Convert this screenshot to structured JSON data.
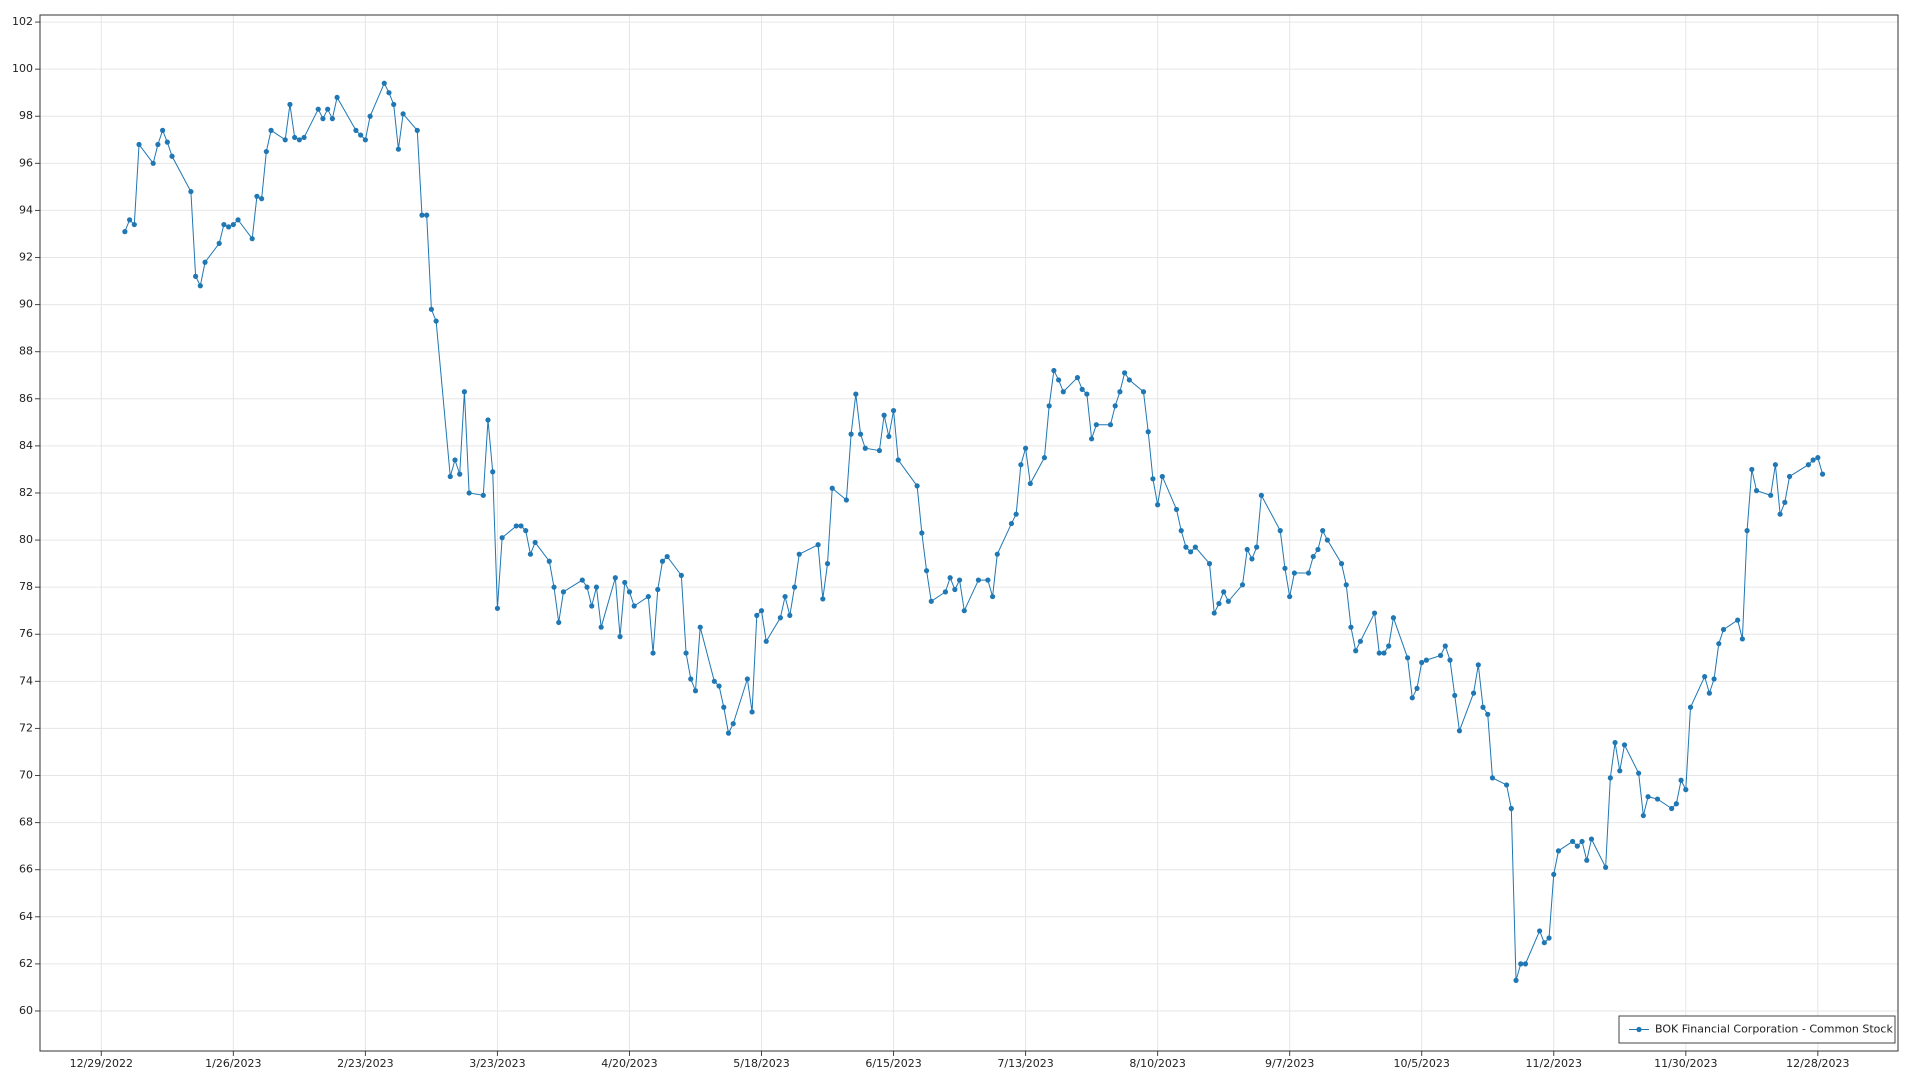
{
  "chart_data": {
    "type": "line",
    "x": [
      "2023-01-03",
      "2023-01-04",
      "2023-01-05",
      "2023-01-06",
      "2023-01-09",
      "2023-01-10",
      "2023-01-11",
      "2023-01-12",
      "2023-01-13",
      "2023-01-17",
      "2023-01-18",
      "2023-01-19",
      "2023-01-20",
      "2023-01-23",
      "2023-01-24",
      "2023-01-25",
      "2023-01-26",
      "2023-01-27",
      "2023-01-30",
      "2023-01-31",
      "2023-02-01",
      "2023-02-02",
      "2023-02-03",
      "2023-02-06",
      "2023-02-07",
      "2023-02-08",
      "2023-02-09",
      "2023-02-10",
      "2023-02-13",
      "2023-02-14",
      "2023-02-15",
      "2023-02-16",
      "2023-02-17",
      "2023-02-21",
      "2023-02-22",
      "2023-02-23",
      "2023-02-24",
      "2023-02-27",
      "2023-02-28",
      "2023-03-01",
      "2023-03-02",
      "2023-03-03",
      "2023-03-06",
      "2023-03-07",
      "2023-03-08",
      "2023-03-09",
      "2023-03-10",
      "2023-03-13",
      "2023-03-14",
      "2023-03-15",
      "2023-03-16",
      "2023-03-17",
      "2023-03-20",
      "2023-03-21",
      "2023-03-22",
      "2023-03-23",
      "2023-03-24",
      "2023-03-27",
      "2023-03-28",
      "2023-03-29",
      "2023-03-30",
      "2023-03-31",
      "2023-04-03",
      "2023-04-04",
      "2023-04-05",
      "2023-04-06",
      "2023-04-10",
      "2023-04-11",
      "2023-04-12",
      "2023-04-13",
      "2023-04-14",
      "2023-04-17",
      "2023-04-18",
      "2023-04-19",
      "2023-04-20",
      "2023-04-21",
      "2023-04-24",
      "2023-04-25",
      "2023-04-26",
      "2023-04-27",
      "2023-04-28",
      "2023-05-01",
      "2023-05-02",
      "2023-05-03",
      "2023-05-04",
      "2023-05-05",
      "2023-05-08",
      "2023-05-09",
      "2023-05-10",
      "2023-05-11",
      "2023-05-12",
      "2023-05-15",
      "2023-05-16",
      "2023-05-17",
      "2023-05-18",
      "2023-05-19",
      "2023-05-22",
      "2023-05-23",
      "2023-05-24",
      "2023-05-25",
      "2023-05-26",
      "2023-05-30",
      "2023-05-31",
      "2023-06-01",
      "2023-06-02",
      "2023-06-05",
      "2023-06-06",
      "2023-06-07",
      "2023-06-08",
      "2023-06-09",
      "2023-06-12",
      "2023-06-13",
      "2023-06-14",
      "2023-06-15",
      "2023-06-16",
      "2023-06-20",
      "2023-06-21",
      "2023-06-22",
      "2023-06-23",
      "2023-06-26",
      "2023-06-27",
      "2023-06-28",
      "2023-06-29",
      "2023-06-30",
      "2023-07-03",
      "2023-07-05",
      "2023-07-06",
      "2023-07-07",
      "2023-07-10",
      "2023-07-11",
      "2023-07-12",
      "2023-07-13",
      "2023-07-14",
      "2023-07-17",
      "2023-07-18",
      "2023-07-19",
      "2023-07-20",
      "2023-07-21",
      "2023-07-24",
      "2023-07-25",
      "2023-07-26",
      "2023-07-27",
      "2023-07-28",
      "2023-07-31",
      "2023-08-01",
      "2023-08-02",
      "2023-08-03",
      "2023-08-04",
      "2023-08-07",
      "2023-08-08",
      "2023-08-09",
      "2023-08-10",
      "2023-08-11",
      "2023-08-14",
      "2023-08-15",
      "2023-08-16",
      "2023-08-17",
      "2023-08-18",
      "2023-08-21",
      "2023-08-22",
      "2023-08-23",
      "2023-08-24",
      "2023-08-25",
      "2023-08-28",
      "2023-08-29",
      "2023-08-30",
      "2023-08-31",
      "2023-09-01",
      "2023-09-05",
      "2023-09-06",
      "2023-09-07",
      "2023-09-08",
      "2023-09-11",
      "2023-09-12",
      "2023-09-13",
      "2023-09-14",
      "2023-09-15",
      "2023-09-18",
      "2023-09-19",
      "2023-09-20",
      "2023-09-21",
      "2023-09-22",
      "2023-09-25",
      "2023-09-26",
      "2023-09-27",
      "2023-09-28",
      "2023-09-29",
      "2023-10-02",
      "2023-10-03",
      "2023-10-04",
      "2023-10-05",
      "2023-10-06",
      "2023-10-09",
      "2023-10-10",
      "2023-10-11",
      "2023-10-12",
      "2023-10-13",
      "2023-10-16",
      "2023-10-17",
      "2023-10-18",
      "2023-10-19",
      "2023-10-20",
      "2023-10-23",
      "2023-10-24",
      "2023-10-25",
      "2023-10-26",
      "2023-10-27",
      "2023-10-30",
      "2023-10-31",
      "2023-11-01",
      "2023-11-02",
      "2023-11-03",
      "2023-11-06",
      "2023-11-07",
      "2023-11-08",
      "2023-11-09",
      "2023-11-10",
      "2023-11-13",
      "2023-11-14",
      "2023-11-15",
      "2023-11-16",
      "2023-11-17",
      "2023-11-20",
      "2023-11-21",
      "2023-11-22",
      "2023-11-24",
      "2023-11-27",
      "2023-11-28",
      "2023-11-29",
      "2023-11-30",
      "2023-12-01",
      "2023-12-04",
      "2023-12-05",
      "2023-12-06",
      "2023-12-07",
      "2023-12-08",
      "2023-12-11",
      "2023-12-12",
      "2023-12-13",
      "2023-12-14",
      "2023-12-15",
      "2023-12-18",
      "2023-12-19",
      "2023-12-20",
      "2023-12-21",
      "2023-12-22",
      "2023-12-26",
      "2023-12-27",
      "2023-12-28",
      "2023-12-29"
    ],
    "series": [
      {
        "name": "BOK Financial Corporation - Common Stock",
        "color": "#1f77b4",
        "values": [
          93.1,
          93.6,
          93.4,
          96.8,
          96.0,
          96.8,
          97.4,
          96.9,
          96.3,
          94.8,
          91.2,
          90.8,
          91.8,
          92.6,
          93.4,
          93.3,
          93.4,
          93.6,
          92.8,
          94.6,
          94.5,
          96.5,
          97.4,
          97.0,
          98.5,
          97.1,
          97.0,
          97.1,
          98.3,
          97.9,
          98.3,
          97.9,
          98.8,
          97.4,
          97.2,
          97.0,
          98.0,
          99.4,
          99.0,
          98.5,
          96.6,
          98.1,
          97.4,
          93.8,
          93.8,
          89.8,
          89.3,
          82.7,
          83.4,
          82.8,
          86.3,
          82.0,
          81.9,
          85.1,
          82.9,
          77.1,
          80.1,
          80.6,
          80.6,
          80.4,
          79.4,
          79.9,
          79.1,
          78.0,
          76.5,
          77.8,
          78.3,
          78.0,
          77.2,
          78.0,
          76.3,
          78.4,
          75.9,
          78.2,
          77.8,
          77.2,
          77.6,
          75.2,
          77.9,
          79.1,
          79.3,
          78.5,
          75.2,
          74.1,
          73.6,
          76.3,
          74.0,
          73.8,
          72.9,
          71.8,
          72.2,
          74.1,
          72.7,
          76.8,
          77.0,
          75.7,
          76.7,
          77.6,
          76.8,
          78.0,
          79.4,
          79.8,
          77.5,
          79.0,
          82.2,
          81.7,
          84.5,
          86.2,
          84.5,
          83.9,
          83.8,
          85.3,
          84.4,
          85.5,
          83.4,
          82.3,
          80.3,
          78.7,
          77.4,
          77.8,
          78.4,
          77.9,
          78.3,
          77.0,
          78.3,
          78.3,
          77.6,
          79.4,
          80.7,
          81.1,
          83.2,
          83.9,
          82.4,
          83.5,
          85.7,
          87.2,
          86.8,
          86.3,
          86.9,
          86.4,
          86.2,
          84.3,
          84.9,
          84.9,
          85.7,
          86.3,
          87.1,
          86.8,
          86.3,
          84.6,
          82.6,
          81.5,
          82.7,
          81.3,
          80.4,
          79.7,
          79.5,
          79.7,
          79.0,
          76.9,
          77.3,
          77.8,
          77.4,
          78.1,
          79.6,
          79.2,
          79.7,
          81.9,
          80.4,
          78.8,
          77.6,
          78.6,
          78.6,
          79.3,
          79.6,
          80.4,
          80.0,
          79.0,
          78.1,
          76.3,
          75.3,
          75.7,
          76.9,
          75.2,
          75.2,
          75.5,
          76.7,
          75.0,
          73.3,
          73.7,
          74.8,
          74.9,
          75.1,
          75.5,
          74.9,
          73.4,
          71.9,
          73.5,
          74.7,
          72.9,
          72.6,
          69.9,
          69.6,
          68.6,
          61.3,
          62.0,
          62.0,
          63.4,
          62.9,
          63.1,
          65.8,
          66.8,
          67.2,
          67.0,
          67.2,
          66.4,
          67.3,
          66.1,
          69.9,
          71.4,
          70.2,
          71.3,
          70.1,
          68.3,
          69.1,
          69.0,
          68.6,
          68.8,
          69.8,
          69.4,
          72.9,
          74.2,
          73.5,
          74.1,
          75.6,
          76.2,
          76.6,
          75.8,
          80.4,
          83.0,
          82.1,
          81.9,
          83.2,
          81.1,
          81.6,
          82.7,
          83.2,
          83.4,
          83.5,
          82.8
        ]
      }
    ],
    "xlim": [
      "2022-12-16",
      "2024-01-14"
    ],
    "xticks": [
      {
        "value": "2022-12-29",
        "label": "12/29/2022"
      },
      {
        "value": "2023-01-26",
        "label": "1/26/2023"
      },
      {
        "value": "2023-02-23",
        "label": "2/23/2023"
      },
      {
        "value": "2023-03-23",
        "label": "3/23/2023"
      },
      {
        "value": "2023-04-20",
        "label": "4/20/2023"
      },
      {
        "value": "2023-05-18",
        "label": "5/18/2023"
      },
      {
        "value": "2023-06-15",
        "label": "6/15/2023"
      },
      {
        "value": "2023-07-13",
        "label": "7/13/2023"
      },
      {
        "value": "2023-08-10",
        "label": "8/10/2023"
      },
      {
        "value": "2023-09-07",
        "label": "9/7/2023"
      },
      {
        "value": "2023-10-05",
        "label": "10/5/2023"
      },
      {
        "value": "2023-11-02",
        "label": "11/2/2023"
      },
      {
        "value": "2023-11-30",
        "label": "11/30/2023"
      },
      {
        "value": "2023-12-28",
        "label": "12/28/2023"
      }
    ],
    "ylim": [
      58.3,
      102.3
    ],
    "yticks": [
      60,
      62,
      64,
      66,
      68,
      70,
      72,
      74,
      76,
      78,
      80,
      82,
      84,
      86,
      88,
      90,
      92,
      94,
      96,
      98,
      100,
      102
    ],
    "grid": true,
    "legend": "lower right"
  }
}
